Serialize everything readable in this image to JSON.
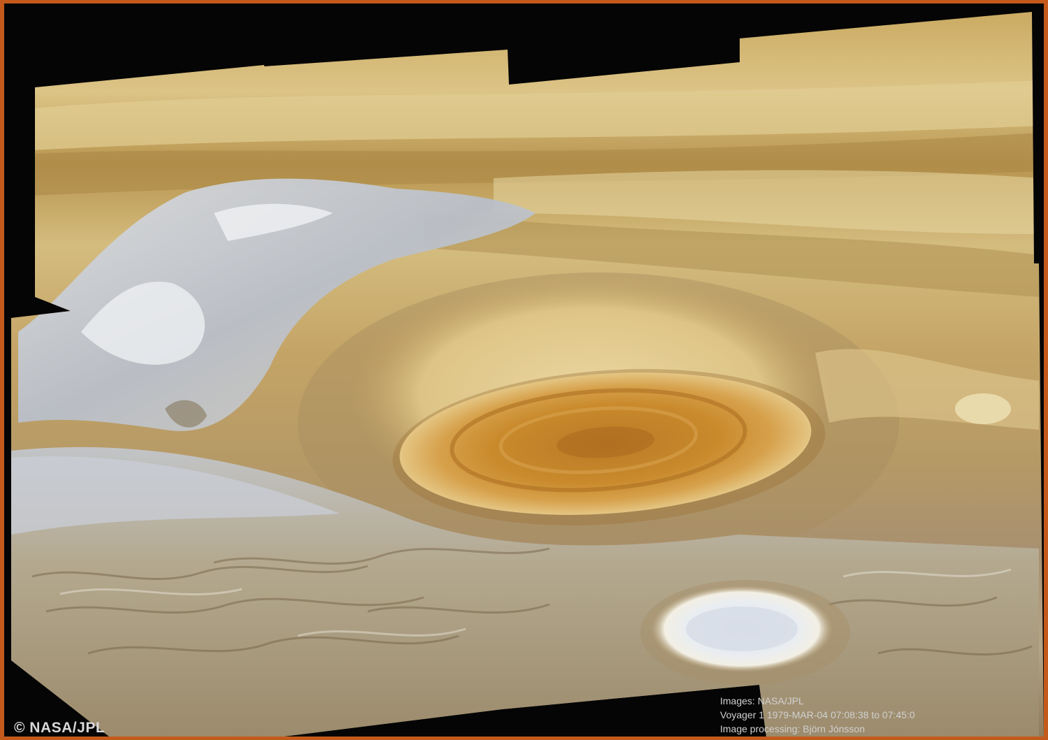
{
  "image": {
    "subject": "Jupiter Great Red Spot mosaic",
    "colors": {
      "border": "#c35a1c",
      "background": "#050505",
      "bands_light": "#d9c27e",
      "bands_dark": "#9c7b3f",
      "red_spot": "#c98a2c",
      "white_storm": "#e3e8ee",
      "blue_turbulence": "#b7bec8"
    }
  },
  "credits": {
    "copyright": "© NASA/JPL",
    "line1": "Images: NASA/JPL",
    "line2": "Voyager 1 1979-MAR-04 07:08:38 to 07:45:0",
    "line3": "Image processing: Björn Jónsson"
  }
}
